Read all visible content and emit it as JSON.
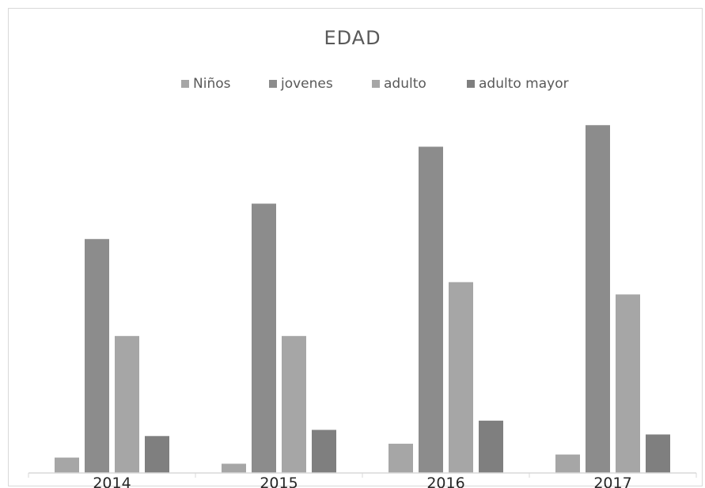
{
  "chart_data": {
    "type": "bar",
    "title": "EDAD",
    "categories": [
      "2014",
      "2015",
      "2016",
      "2017"
    ],
    "series": [
      {
        "name": "Niños",
        "values": [
          10,
          6,
          19,
          12
        ]
      },
      {
        "name": "jovenes",
        "values": [
          152,
          175,
          212,
          226
        ]
      },
      {
        "name": "adulto",
        "values": [
          89,
          89,
          124,
          116
        ]
      },
      {
        "name": "adulto mayor",
        "values": [
          24,
          28,
          34,
          25
        ]
      }
    ],
    "ylim": [
      0,
      240
    ],
    "grid": false,
    "legend_position": "top",
    "colors": {
      "Niños": "#a6a6a6",
      "jovenes": "#8c8c8c",
      "adulto": "#a6a6a6",
      "adulto mayor": "#7f7f7f"
    }
  }
}
